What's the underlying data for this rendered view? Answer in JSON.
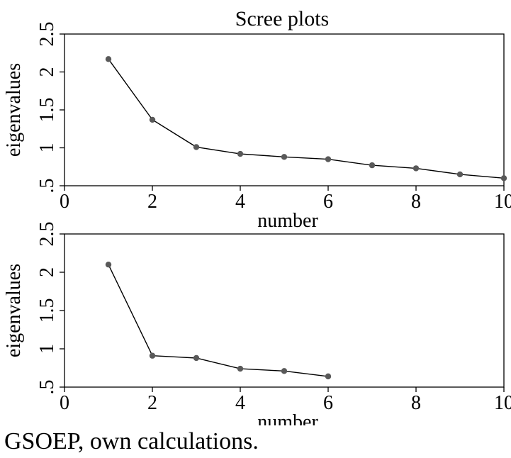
{
  "figure": {
    "title": "Scree plots",
    "caption": "GSOEP, own calculations."
  },
  "chart_data": [
    {
      "type": "line",
      "title": "Scree plots",
      "xlabel": "number",
      "ylabel": "eigenvalues",
      "xlim": [
        0,
        10
      ],
      "ylim": [
        0.5,
        2.5
      ],
      "xticks": [
        0,
        2,
        4,
        6,
        8,
        10
      ],
      "yticks": [
        0.5,
        1,
        1.5,
        2,
        2.5
      ],
      "ytick_labels": [
        ".5",
        "1",
        "1.5",
        "2",
        "2.5"
      ],
      "grid": false,
      "marker_color": "#595959",
      "line_color": "#000000",
      "x": [
        1,
        2,
        3,
        4,
        5,
        6,
        7,
        8,
        9,
        10
      ],
      "y": [
        2.17,
        1.37,
        1.01,
        0.92,
        0.88,
        0.85,
        0.77,
        0.73,
        0.65,
        0.6
      ]
    },
    {
      "type": "line",
      "title": "",
      "xlabel": "number",
      "ylabel": "eigenvalues",
      "xlim": [
        0,
        10
      ],
      "ylim": [
        0.5,
        2.5
      ],
      "xticks": [
        0,
        2,
        4,
        6,
        8,
        10
      ],
      "yticks": [
        0.5,
        1,
        1.5,
        2,
        2.5
      ],
      "ytick_labels": [
        ".5",
        "1",
        "1.5",
        "2",
        "2.5"
      ],
      "grid": false,
      "marker_color": "#595959",
      "line_color": "#000000",
      "x": [
        1,
        2,
        3,
        4,
        5,
        6
      ],
      "y": [
        2.1,
        0.91,
        0.88,
        0.74,
        0.71,
        0.64
      ]
    }
  ]
}
